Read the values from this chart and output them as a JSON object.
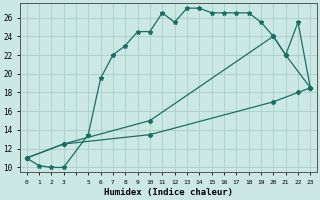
{
  "xlabel": "Humidex (Indice chaleur)",
  "background_color": "#cce8e4",
  "grid_color": "#aaceca",
  "line_color": "#1a6e64",
  "ylim": [
    9.5,
    27.5
  ],
  "yticks": [
    10,
    12,
    14,
    16,
    18,
    20,
    22,
    24,
    26
  ],
  "xlim": [
    -0.5,
    23.5
  ],
  "x_ticks_labeled": [
    0,
    1,
    2,
    3,
    5,
    6,
    7,
    8,
    9,
    10,
    11,
    12,
    13,
    14,
    15,
    16,
    17,
    18,
    19,
    20,
    21,
    22,
    23
  ],
  "line1_x": [
    0,
    1,
    2,
    3,
    5,
    6,
    7,
    8,
    9,
    10,
    11,
    12,
    13,
    14,
    15,
    16,
    17,
    18,
    19,
    20,
    21,
    22,
    23
  ],
  "line1_y": [
    11.0,
    10.2,
    10.0,
    10.0,
    13.5,
    19.5,
    22.0,
    23.0,
    24.5,
    24.5,
    26.5,
    25.5,
    27.0,
    27.0,
    26.5,
    26.5,
    26.5,
    26.5,
    25.5,
    24.0,
    22.0,
    25.5,
    18.5
  ],
  "line2_x": [
    0,
    3,
    10,
    20,
    21,
    23
  ],
  "line2_y": [
    11.0,
    12.5,
    15.0,
    24.0,
    22.0,
    18.5
  ],
  "line3_x": [
    0,
    3,
    10,
    20,
    22,
    23
  ],
  "line3_y": [
    11.0,
    12.5,
    13.5,
    17.0,
    18.0,
    18.5
  ]
}
